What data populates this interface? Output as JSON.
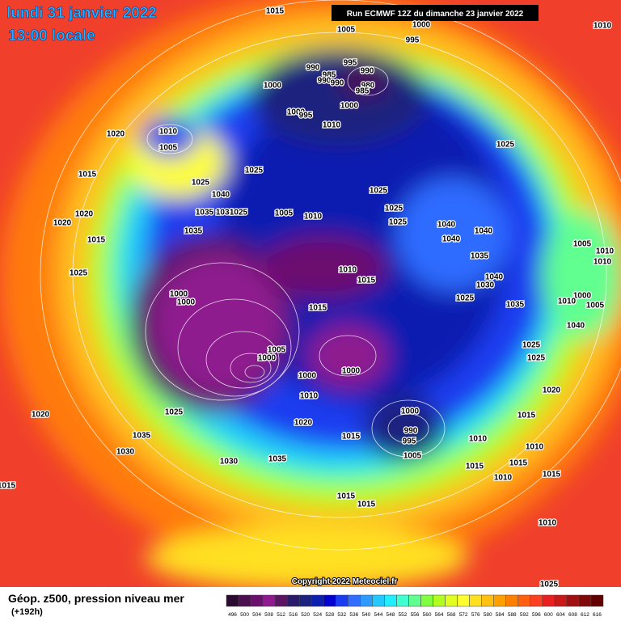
{
  "header": {
    "date": "lundi 31 janvier 2022",
    "time": "13:00 locale",
    "run": "Run ECMWF 12Z du dimanche 23 janvier 2022"
  },
  "copyright": "Copyright 2022 Meteociel.fr",
  "isobar_labels": [
    1015,
    1005,
    1000,
    995,
    1010,
    990,
    995,
    985,
    990,
    990,
    990,
    980,
    985,
    1000,
    1000,
    1000,
    995,
    1010,
    1020,
    1010,
    1005,
    1025,
    1025,
    1025,
    1015,
    1040,
    1025,
    1025,
    1025,
    1005,
    1010,
    1035,
    1030,
    1025,
    1020,
    1020,
    1040,
    1040,
    1040,
    1015,
    1035,
    1005,
    1010,
    1010,
    1035,
    1025,
    1010,
    1015,
    1040,
    1030,
    1000,
    1000,
    1015,
    1025,
    1035,
    1000,
    1005,
    1010,
    1040,
    1005,
    1000,
    1000,
    1000,
    1025,
    1025,
    1010,
    1020,
    1025,
    1020,
    1000,
    1015,
    1020,
    990,
    995,
    1035,
    1015,
    1010,
    1030,
    1010,
    1005,
    1035,
    1030,
    1015,
    1015,
    1015,
    1015,
    1015,
    1010,
    1015,
    1010,
    1025
  ],
  "legend": {
    "title": "Géop. z500, pression niveau mer",
    "lead": "(+192h)",
    "ticks": [
      496,
      500,
      504,
      508,
      512,
      516,
      520,
      524,
      528,
      532,
      536,
      540,
      544,
      548,
      552,
      556,
      560,
      564,
      568,
      572,
      576,
      580,
      584,
      588,
      592,
      596,
      600,
      604,
      608,
      612,
      616
    ],
    "colors": [
      "#2b0b30",
      "#4b0f4f",
      "#6c1070",
      "#8f1a8f",
      "#5a1462",
      "#2a1a6a",
      "#1a237e",
      "#0d1fb0",
      "#0000d0",
      "#1a3cf0",
      "#2f6cff",
      "#2e9aff",
      "#22c8ff",
      "#20eeff",
      "#40ffd0",
      "#60ff90",
      "#80ff40",
      "#b0ff20",
      "#e0ff20",
      "#ffff30",
      "#ffe020",
      "#ffc010",
      "#ffa000",
      "#ff8000",
      "#ff6010",
      "#ff4020",
      "#e82020",
      "#c81818",
      "#a01010",
      "#800808",
      "#600000"
    ]
  }
}
